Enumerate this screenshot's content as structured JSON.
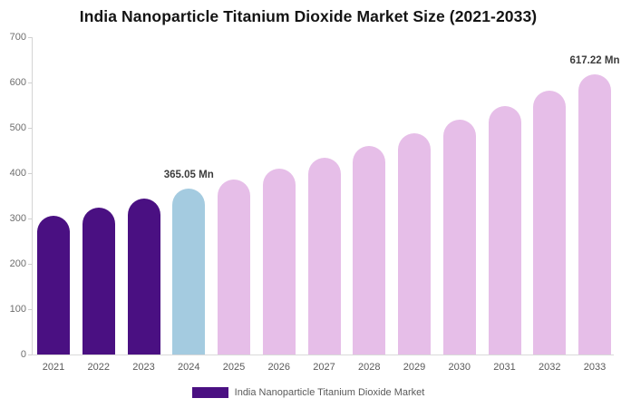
{
  "page": {
    "title": "India Nanoparticle Titanium Dioxide Market Size (2021-2033)"
  },
  "chart_data": {
    "type": "bar",
    "title": "India Nanoparticle Titanium Dioxide Market Size (2021-2033)",
    "categories": [
      "2021",
      "2022",
      "2023",
      "2024",
      "2025",
      "2026",
      "2027",
      "2028",
      "2029",
      "2030",
      "2031",
      "2032",
      "2033"
    ],
    "values": [
      307,
      325,
      344,
      365.05,
      387,
      410,
      435,
      461,
      489,
      518,
      549,
      582,
      617.22
    ],
    "bar_colors": [
      "#4A1082",
      "#4A1082",
      "#4A1082",
      "#A4CBE0",
      "#E6BEE8",
      "#E6BEE8",
      "#E6BEE8",
      "#E6BEE8",
      "#E6BEE8",
      "#E6BEE8",
      "#E6BEE8",
      "#E6BEE8",
      "#E6BEE8"
    ],
    "xlabel": "",
    "ylabel": "",
    "ylim": [
      0,
      700
    ],
    "yticks": [
      0,
      100,
      200,
      300,
      400,
      500,
      600,
      700
    ],
    "grid": false,
    "legend_position": "bottom",
    "data_labels": [
      {
        "category": "2024",
        "text": "365.05 Mn"
      },
      {
        "category": "2033",
        "text": "617.22 Mn"
      }
    ],
    "legend_entries": [
      {
        "label": "India Nanoparticle Titanium Dioxide Market",
        "color": "#4A1082"
      }
    ]
  },
  "legend": {
    "label": "India Nanoparticle Titanium Dioxide Market",
    "swatch_color": "#4A1082"
  },
  "colors": {
    "historical_bar": "#4A1082",
    "current_year_bar": "#A4CBE0",
    "forecast_bar": "#E6BEE8",
    "axis_line": "#D4D4D4",
    "y_tick_text": "#6E6E6E",
    "x_tick_text": "#5A5A5A",
    "data_label_text": "#3C3C3C",
    "title_text": "#141414",
    "legend_text": "#5A5A5A",
    "background": "#FFFFFF"
  }
}
